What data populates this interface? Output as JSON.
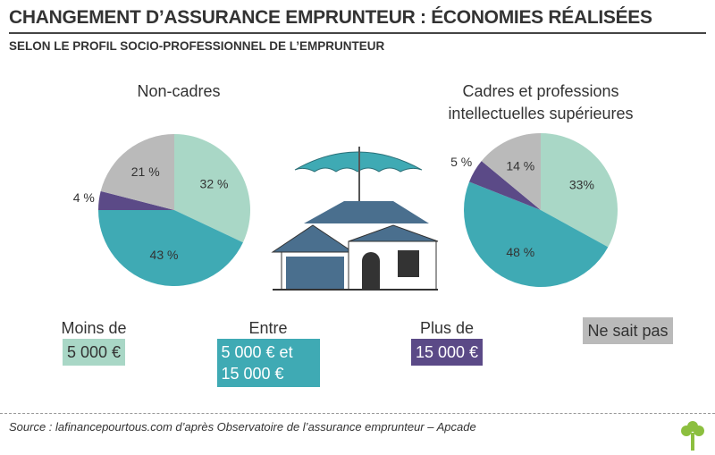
{
  "title": "CHANGEMENT D’ASSURANCE EMPRUNTEUR : ÉCONOMIES RÉALISÉES",
  "subtitle": "SELON LE PROFIL SOCIO-PROFESSIONNEL DE L’EMPRUNTEUR",
  "legend": [
    {
      "prefix": "Moins de",
      "label": "5 000 €",
      "color": "#a9d7c6"
    },
    {
      "prefix": "Entre",
      "label": "5 000 € et 15 000 €",
      "color": "#3faab4"
    },
    {
      "prefix": "Plus de",
      "label": "15 000 €",
      "color": "#5b4a87"
    },
    {
      "label": "Ne sait pas",
      "color": "#bababa"
    }
  ],
  "chart_data": [
    {
      "type": "pie",
      "title": "Non-cadres",
      "values": [
        32,
        43,
        4,
        21
      ],
      "value_labels": [
        "32 %",
        "43 %",
        "4 %",
        "21 %"
      ]
    },
    {
      "type": "pie",
      "title": "Cadres et professions intellectuelles supérieures",
      "values": [
        33,
        48,
        5,
        14
      ],
      "value_labels": [
        "33%",
        "48 %",
        "5 %",
        "14 %"
      ]
    }
  ],
  "source": "Source : lafinancepourtous.com d’après Observatoire de l’assurance emprunteur – Apcade"
}
